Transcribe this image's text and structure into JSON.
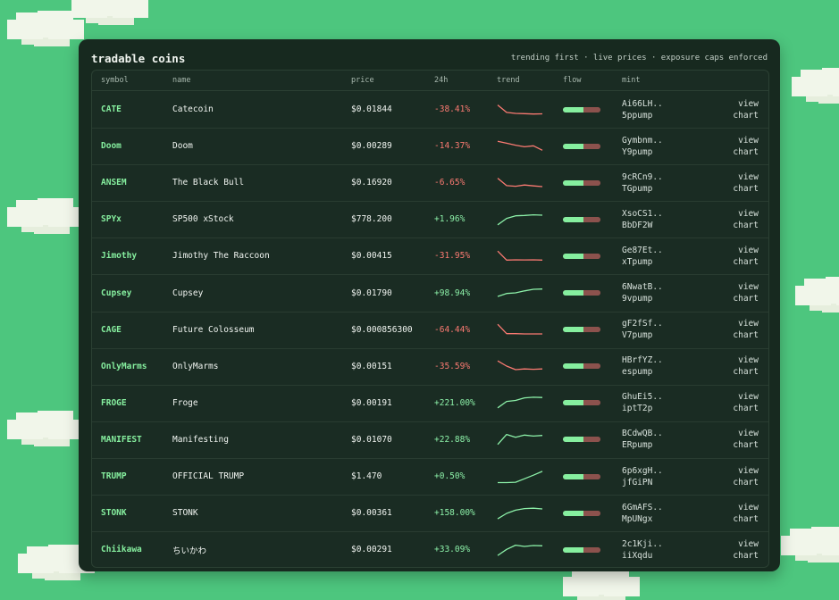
{
  "panel": {
    "title": "tradable coins",
    "subtitle": "trending first · live prices · exposure caps enforced"
  },
  "headers": {
    "symbol": "symbol",
    "name": "name",
    "price": "price",
    "change": "24h",
    "trend": "trend",
    "flow": "flow",
    "mint": "mint"
  },
  "colors": {
    "background": "#4dc67e",
    "panel": "#17291f",
    "positive": "#8cf0a8",
    "negative": "#fb7a72",
    "symbol": "#86ef9f",
    "flow_buy": "#86ef9f",
    "flow_sell": "#8c524d"
  },
  "rows": [
    {
      "symbol": "CATE",
      "name": "Catecoin",
      "price": "$0.01844",
      "change": "-38.41%",
      "direction": "neg",
      "trend": [
        0.2,
        0.66,
        0.72,
        0.74,
        0.76,
        0.75
      ],
      "flow_buy": 0.55,
      "mint1": "Ai66LH..",
      "mint2": "5ppump",
      "action1": "view",
      "action2": "chart"
    },
    {
      "symbol": "Doom",
      "name": "Doom",
      "price": "$0.00289",
      "change": "-14.37%",
      "direction": "neg",
      "trend": [
        0.18,
        0.3,
        0.42,
        0.52,
        0.46,
        0.74
      ],
      "flow_buy": 0.55,
      "mint1": "Gymbnm..",
      "mint2": "Y9pump",
      "action1": "view",
      "action2": "chart"
    },
    {
      "symbol": "ANSEM",
      "name": "The Black Bull",
      "price": "$0.16920",
      "change": "-6.65%",
      "direction": "neg",
      "trend": [
        0.2,
        0.66,
        0.7,
        0.62,
        0.68,
        0.72
      ],
      "flow_buy": 0.55,
      "mint1": "9cRCn9..",
      "mint2": "TGpump",
      "action1": "view",
      "action2": "chart"
    },
    {
      "symbol": "SPYx",
      "name": "SP500 xStock",
      "price": "$778.200",
      "change": "+1.96%",
      "direction": "pos",
      "trend": [
        0.82,
        0.42,
        0.26,
        0.24,
        0.2,
        0.22
      ],
      "flow_buy": 0.55,
      "mint1": "XsoCS1..",
      "mint2": "BbDF2W",
      "action1": "view",
      "action2": "chart"
    },
    {
      "symbol": "Jimothy",
      "name": "Jimothy The Raccoon",
      "price": "$0.00415",
      "change": "-31.95%",
      "direction": "neg",
      "trend": [
        0.18,
        0.74,
        0.72,
        0.73,
        0.72,
        0.74
      ],
      "flow_buy": 0.55,
      "mint1": "Ge87Et..",
      "mint2": "xTpump",
      "action1": "view",
      "action2": "chart"
    },
    {
      "symbol": "Cupsey",
      "name": "Cupsey",
      "price": "$0.01790",
      "change": "+98.94%",
      "direction": "pos",
      "trend": [
        0.72,
        0.54,
        0.5,
        0.38,
        0.28,
        0.26
      ],
      "flow_buy": 0.55,
      "mint1": "6NwatB..",
      "mint2": "9vpump",
      "action1": "view",
      "action2": "chart"
    },
    {
      "symbol": "CAGE",
      "name": "Future Colosseum",
      "price": "$0.000856300",
      "change": "-64.44%",
      "direction": "neg",
      "trend": [
        0.18,
        0.76,
        0.76,
        0.78,
        0.78,
        0.78
      ],
      "flow_buy": 0.55,
      "mint1": "gF2fSf..",
      "mint2": "V7pump",
      "action1": "view",
      "action2": "chart"
    },
    {
      "symbol": "OnlyMarms",
      "name": "OnlyMarms",
      "price": "$0.00151",
      "change": "-35.59%",
      "direction": "neg",
      "trend": [
        0.18,
        0.5,
        0.72,
        0.68,
        0.7,
        0.68
      ],
      "flow_buy": 0.55,
      "mint1": "HBrfYZ..",
      "mint2": "espump",
      "action1": "view",
      "action2": "chart"
    },
    {
      "symbol": "FROGE",
      "name": "Froge",
      "price": "$0.00191",
      "change": "+221.00%",
      "direction": "pos",
      "trend": [
        0.82,
        0.42,
        0.36,
        0.2,
        0.16,
        0.18
      ],
      "flow_buy": 0.55,
      "mint1": "GhuEi5..",
      "mint2": "iptT2p",
      "action1": "view",
      "action2": "chart"
    },
    {
      "symbol": "MANIFEST",
      "name": "Manifesting",
      "price": "$0.01070",
      "change": "+22.88%",
      "direction": "pos",
      "trend": [
        0.82,
        0.2,
        0.38,
        0.24,
        0.3,
        0.26
      ],
      "flow_buy": 0.55,
      "mint1": "BCdwQB..",
      "mint2": "ERpump",
      "action1": "view",
      "action2": "chart"
    },
    {
      "symbol": "TRUMP",
      "name": "OFFICIAL TRUMP",
      "price": "$1.470",
      "change": "+0.50%",
      "direction": "pos",
      "trend": [
        0.86,
        0.86,
        0.84,
        0.62,
        0.4,
        0.16
      ],
      "flow_buy": 0.55,
      "mint1": "6p6xgH..",
      "mint2": "jfGiPN",
      "action1": "view",
      "action2": "chart"
    },
    {
      "symbol": "STONK",
      "name": "STONK",
      "price": "$0.00361",
      "change": "+158.00%",
      "direction": "pos",
      "trend": [
        0.84,
        0.5,
        0.3,
        0.2,
        0.18,
        0.22
      ],
      "flow_buy": 0.55,
      "mint1": "6GmAFS..",
      "mint2": "MpUNgx",
      "action1": "view",
      "action2": "chart"
    },
    {
      "symbol": "Chiikawa",
      "name": "ちいかわ",
      "price": "$0.00291",
      "change": "+33.09%",
      "direction": "pos",
      "trend": [
        0.84,
        0.46,
        0.2,
        0.28,
        0.22,
        0.24
      ],
      "flow_buy": 0.55,
      "mint1": "2c1Kji..",
      "mint2": "iiXqdu",
      "action1": "view",
      "action2": "chart"
    }
  ]
}
